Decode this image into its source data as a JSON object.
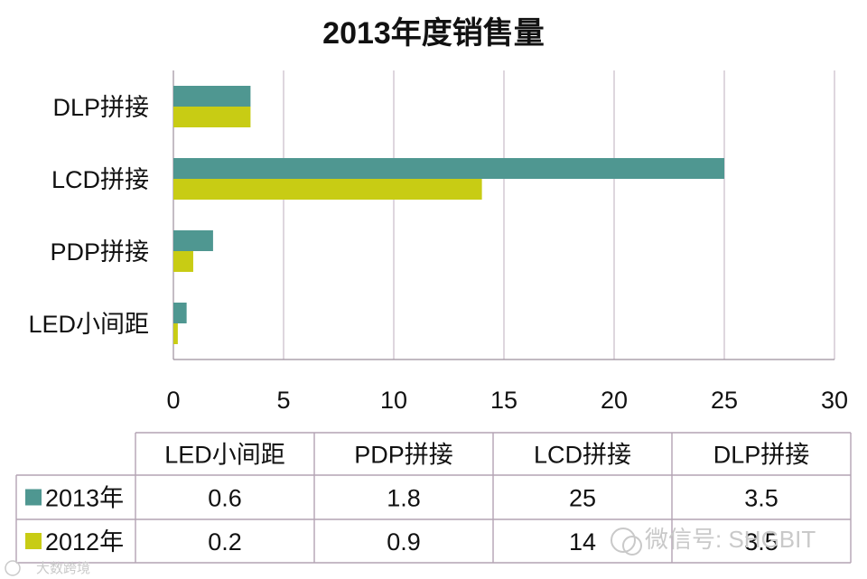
{
  "chart_data": {
    "type": "bar",
    "orientation": "horizontal",
    "title": "2013年度销售量",
    "categories": [
      "LED小间距",
      "PDP拼接",
      "LCD拼接",
      "DLP拼接"
    ],
    "series": [
      {
        "name": "2013年",
        "color": "#4f9791",
        "values": [
          0.6,
          1.8,
          25,
          3.5
        ]
      },
      {
        "name": "2012年",
        "color": "#c8cc14",
        "values": [
          0.2,
          0.9,
          14,
          3.5
        ]
      }
    ],
    "xlim": [
      0,
      30
    ],
    "xticks": [
      0,
      5,
      10,
      15,
      20,
      25,
      30
    ],
    "tick_labels": [
      "0",
      "5",
      "10",
      "15",
      "20",
      "25",
      "30"
    ],
    "grid": true,
    "data_table": {
      "columns": [
        "LED小间距",
        "PDP拼接",
        "LCD拼接",
        "DLP拼接"
      ],
      "rows": [
        {
          "label": "2013年",
          "values": [
            "0.6",
            "1.8",
            "25",
            "3.5"
          ]
        },
        {
          "label": "2012年",
          "values": [
            "0.2",
            "0.9",
            "14",
            "3.5"
          ]
        }
      ]
    }
  },
  "watermarks": {
    "wechat": "微信号: SHGBIT",
    "corner": "大数跨境"
  }
}
